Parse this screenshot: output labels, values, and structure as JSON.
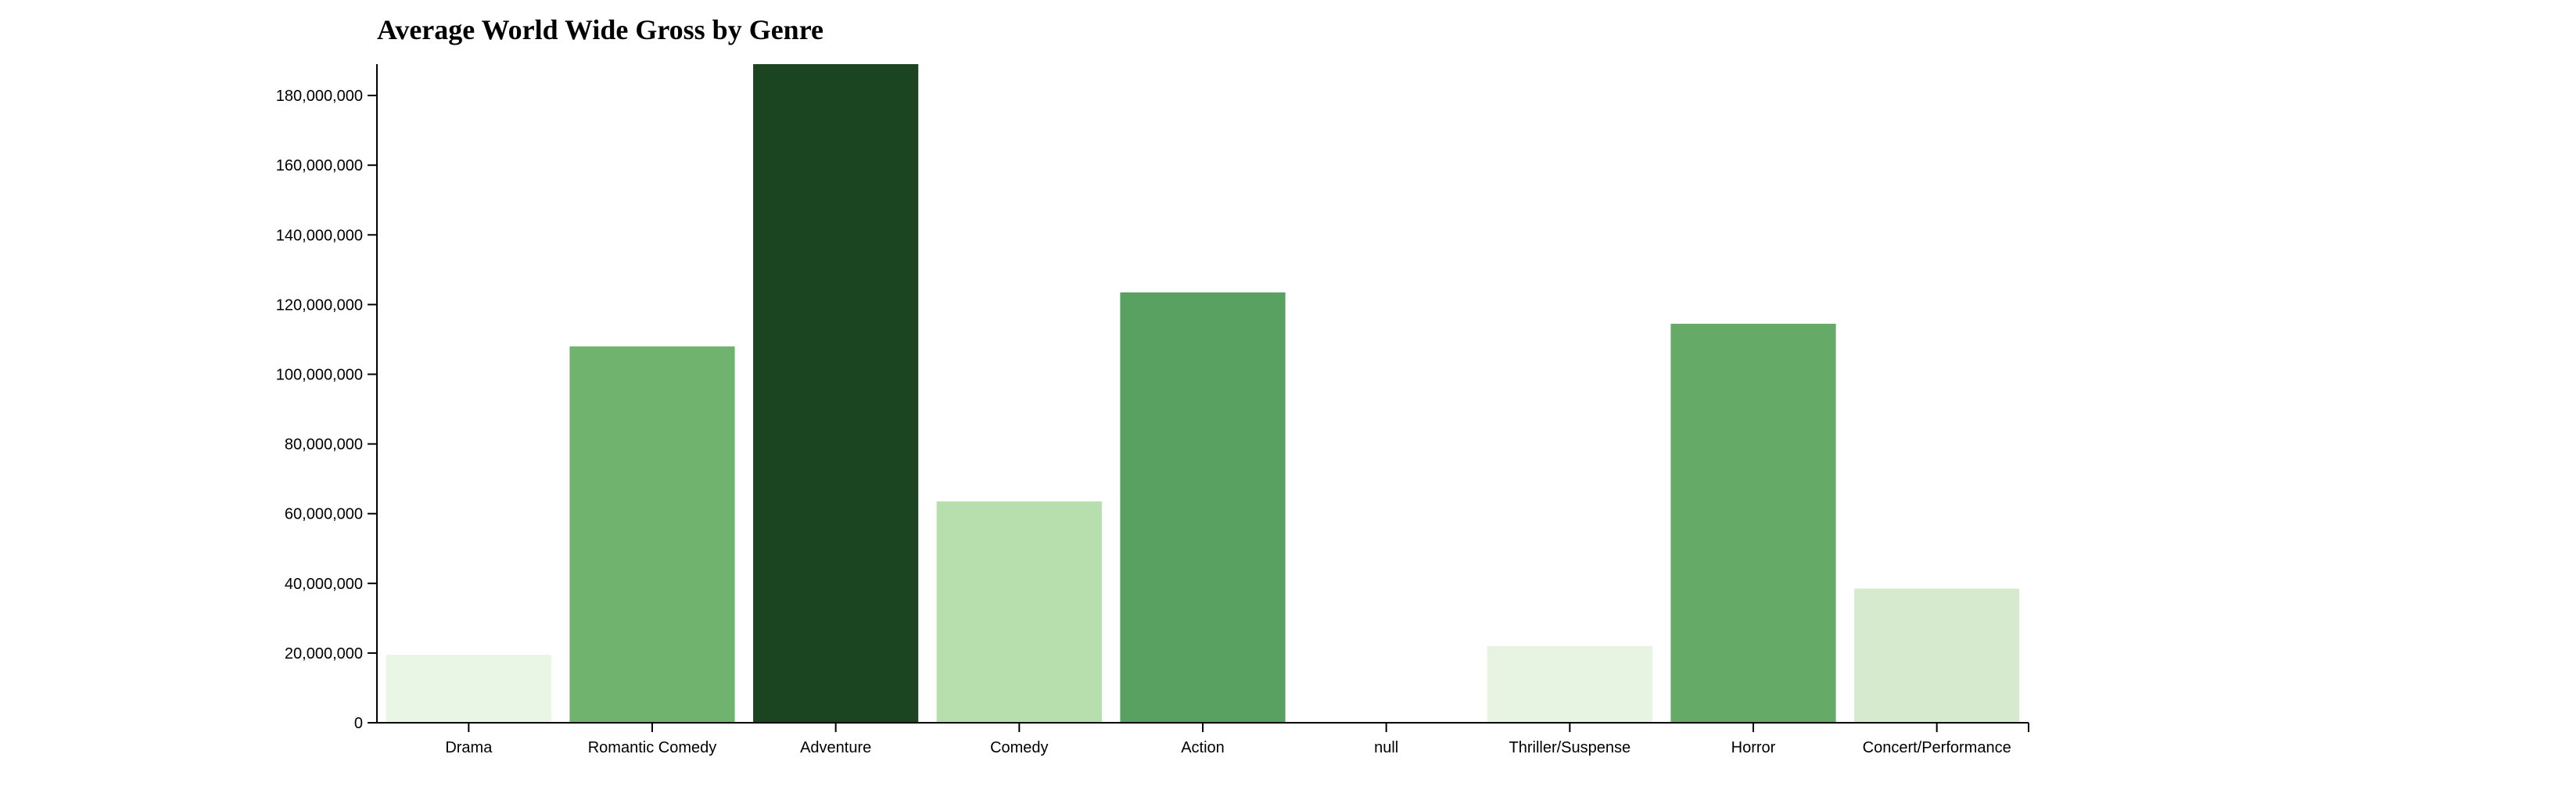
{
  "chart_data": {
    "type": "bar",
    "title": "Average World Wide Gross by Genre",
    "xlabel": "",
    "ylabel": "",
    "categories": [
      "Drama",
      "Romantic Comedy",
      "Adventure",
      "Comedy",
      "Action",
      "null",
      "Thriller/Suspense",
      "Horror",
      "Concert/Performance"
    ],
    "values": [
      19500000,
      108000000,
      189000000,
      63500000,
      123500000,
      0,
      22000000,
      114500000,
      38500000
    ],
    "colors": [
      "#e9f5e5",
      "#6fb36f",
      "#1b4421",
      "#b7dfad",
      "#59a160",
      "#ffffff",
      "#e6f4e1",
      "#65ab67",
      "#d6ebcd"
    ],
    "ylim": [
      0,
      189000000
    ],
    "yticks": [
      0,
      20000000,
      40000000,
      60000000,
      80000000,
      100000000,
      120000000,
      140000000,
      160000000,
      180000000
    ],
    "ytick_labels": [
      "0",
      "20,000,000",
      "40,000,000",
      "60,000,000",
      "80,000,000",
      "100,000,000",
      "120,000,000",
      "140,000,000",
      "160,000,000",
      "180,000,000"
    ],
    "grid": false,
    "legend": "none"
  }
}
